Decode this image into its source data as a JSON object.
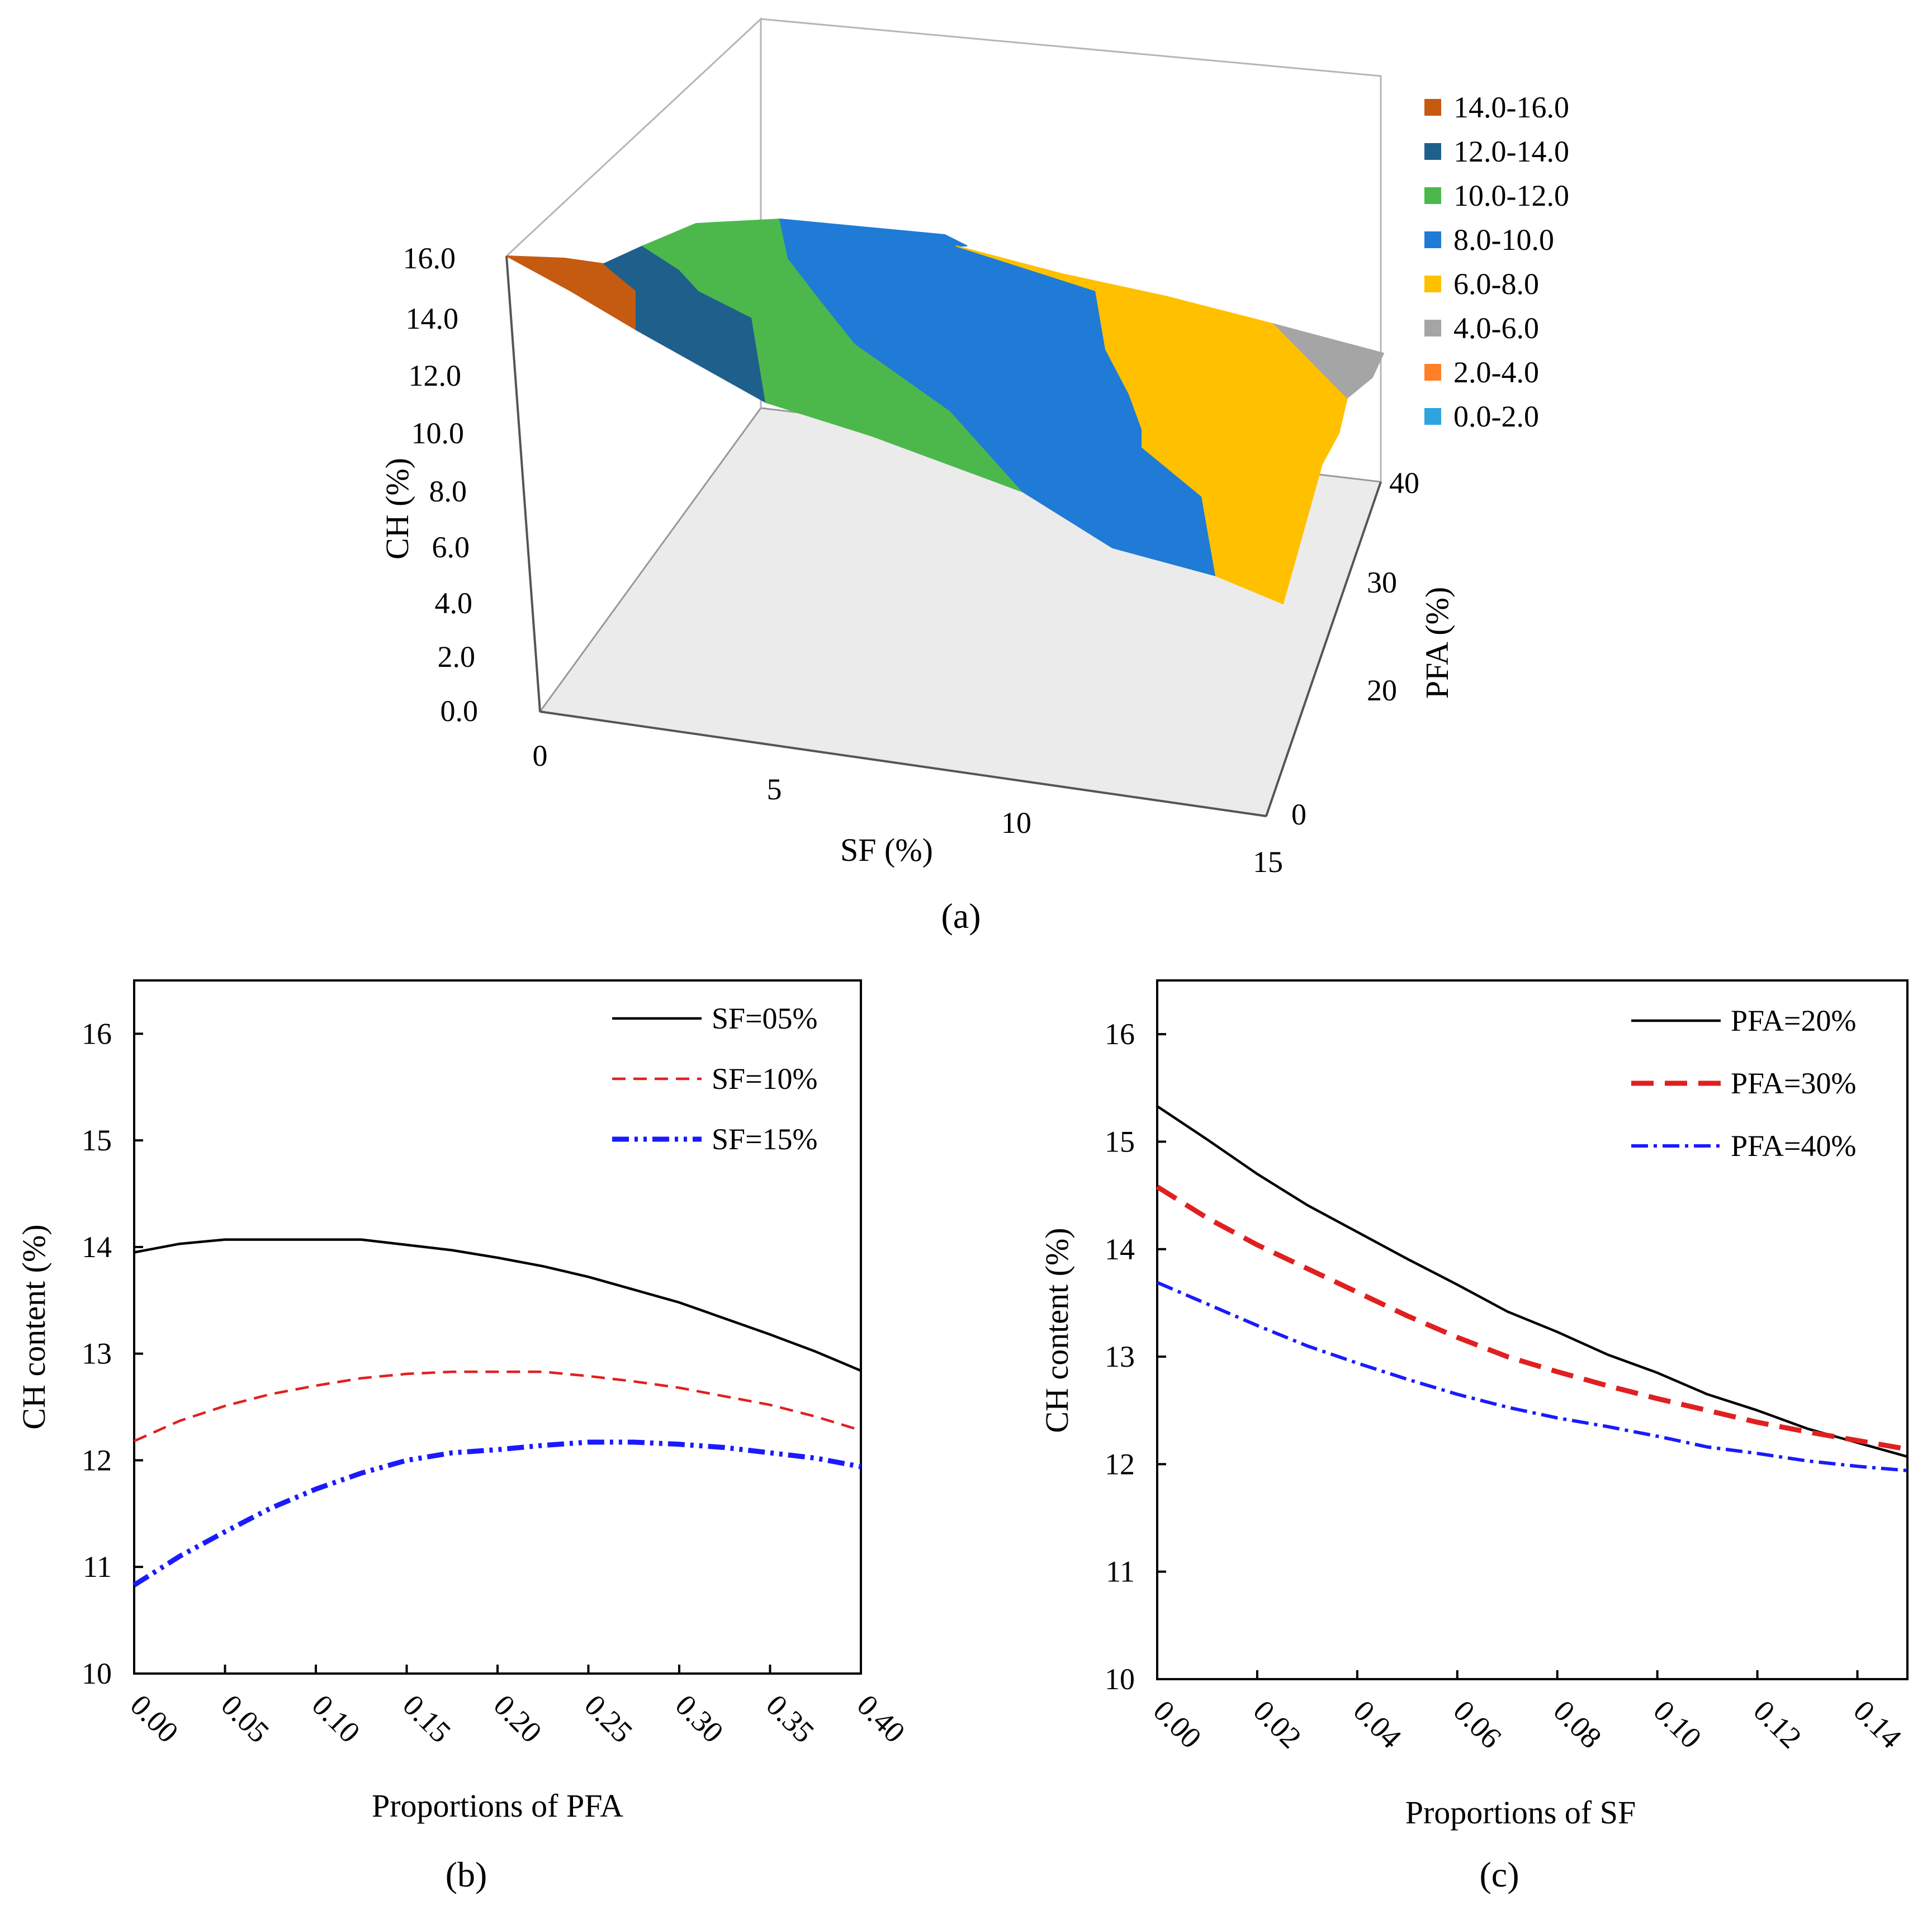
{
  "chart_data": [
    {
      "panel": "a",
      "type": "surface3d",
      "panel_label": "(a)",
      "xlabel": "SF (%)",
      "ylabel": "PFA (%)",
      "zlabel": "CH (%)",
      "x_ticks": [
        "0",
        "5",
        "10",
        "15"
      ],
      "y_ticks": [
        "0",
        "20",
        "30",
        "40"
      ],
      "z_ticks": [
        "0.0",
        "2.0",
        "4.0",
        "6.0",
        "8.0",
        "10.0",
        "12.0",
        "14.0",
        "16.0"
      ],
      "legend": [
        {
          "label": "14.0-16.0",
          "color": "#c55a11"
        },
        {
          "label": "12.0-14.0",
          "color": "#1f5f8b"
        },
        {
          "label": "10.0-12.0",
          "color": "#4cb84c"
        },
        {
          "label": "8.0-10.0",
          "color": "#1f7bd6"
        },
        {
          "label": "6.0-8.0",
          "color": "#ffc000"
        },
        {
          "label": "4.0-6.0",
          "color": "#a5a5a5"
        },
        {
          "label": "2.0-4.0",
          "color": "#ff7f27"
        },
        {
          "label": "0.0-2.0",
          "color": "#2ea3e0"
        }
      ]
    },
    {
      "panel": "b",
      "type": "line",
      "panel_label": "(b)",
      "xlabel": "Proportions of PFA",
      "ylabel": "CH content (%)",
      "xlim": [
        0,
        0.4
      ],
      "ylim": [
        10,
        16.5
      ],
      "x_ticks": [
        "0.00",
        "0.05",
        "0.10",
        "0.15",
        "0.20",
        "0.25",
        "0.30",
        "0.35",
        "0.40"
      ],
      "y_ticks": [
        "10",
        "11",
        "12",
        "13",
        "14",
        "15",
        "16"
      ],
      "x": [
        0,
        0.025,
        0.05,
        0.075,
        0.1,
        0.125,
        0.15,
        0.175,
        0.2,
        0.225,
        0.25,
        0.275,
        0.3,
        0.325,
        0.35,
        0.375,
        0.4
      ],
      "series": [
        {
          "name": "SF=05%",
          "color": "#000000",
          "dash": "",
          "width": 4.5,
          "values": [
            13.95,
            14.03,
            14.07,
            14.07,
            14.07,
            14.07,
            14.02,
            13.97,
            13.9,
            13.82,
            13.72,
            13.6,
            13.48,
            13.33,
            13.18,
            13.02,
            12.84
          ]
        },
        {
          "name": "SF=10%",
          "color": "#e02020",
          "dash": "24,14",
          "width": 4.5,
          "values": [
            12.18,
            12.37,
            12.51,
            12.62,
            12.7,
            12.77,
            12.81,
            12.83,
            12.83,
            12.83,
            12.79,
            12.74,
            12.68,
            12.6,
            12.52,
            12.41,
            12.28
          ]
        },
        {
          "name": "SF=15%",
          "color": "#1a1aff",
          "dash": "30,10,6,10,6,10",
          "width": 9,
          "values": [
            10.83,
            11.1,
            11.33,
            11.55,
            11.73,
            11.88,
            12.0,
            12.07,
            12.1,
            12.14,
            12.17,
            12.17,
            12.15,
            12.12,
            12.07,
            12.02,
            11.94
          ]
        }
      ]
    },
    {
      "panel": "c",
      "type": "line",
      "panel_label": "(c)",
      "xlabel": "Proportions of SF",
      "ylabel": "CH content (%)",
      "xlim": [
        0,
        0.15
      ],
      "ylim": [
        10,
        16.5
      ],
      "x_ticks": [
        "0.00",
        "0.02",
        "0.04",
        "0.06",
        "0.08",
        "0.10",
        "0.12",
        "0.14"
      ],
      "y_ticks": [
        "10",
        "11",
        "12",
        "13",
        "14",
        "15",
        "16"
      ],
      "x": [
        0,
        0.01,
        0.02,
        0.03,
        0.04,
        0.05,
        0.06,
        0.07,
        0.08,
        0.09,
        0.1,
        0.11,
        0.12,
        0.13,
        0.14,
        0.15
      ],
      "series": [
        {
          "name": "PFA=20%",
          "color": "#000000",
          "dash": "",
          "width": 4.5,
          "values": [
            15.33,
            15.02,
            14.7,
            14.41,
            14.16,
            13.91,
            13.67,
            13.42,
            13.23,
            13.02,
            12.85,
            12.65,
            12.5,
            12.33,
            12.2,
            12.07
          ]
        },
        {
          "name": "PFA=30%",
          "color": "#e02020",
          "dash": "40,20",
          "width": 9,
          "values": [
            14.58,
            14.29,
            14.04,
            13.82,
            13.6,
            13.38,
            13.18,
            13.0,
            12.86,
            12.73,
            12.61,
            12.5,
            12.39,
            12.3,
            12.22,
            12.14
          ]
        },
        {
          "name": "PFA=40%",
          "color": "#1a1aff",
          "dash": "30,10,6,10",
          "width": 6,
          "values": [
            13.69,
            13.49,
            13.29,
            13.1,
            12.94,
            12.79,
            12.65,
            12.53,
            12.43,
            12.35,
            12.26,
            12.16,
            12.1,
            12.03,
            11.98,
            11.94
          ]
        }
      ]
    }
  ]
}
